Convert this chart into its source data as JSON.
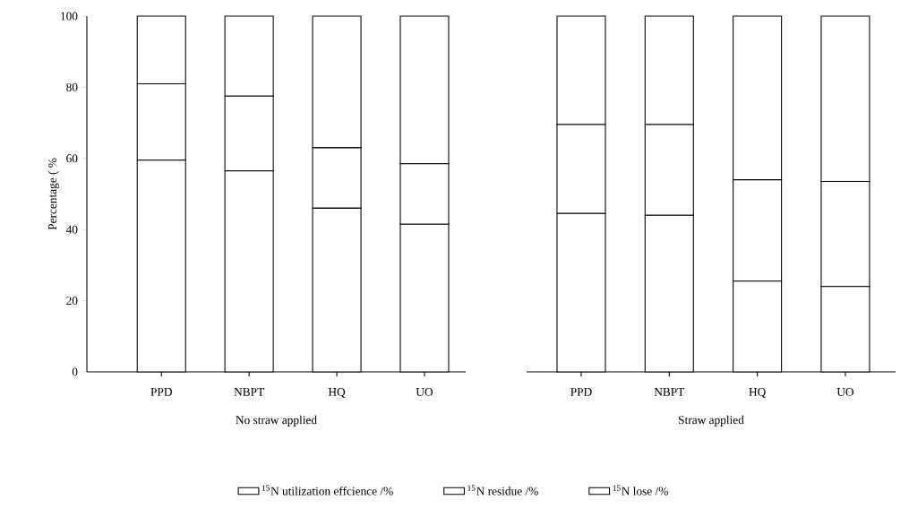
{
  "chart_data": [
    {
      "type": "bar",
      "stacked": true,
      "xlabel": "No straw applied",
      "ylabel": "Percentage ( %",
      "categories": [
        "PPD",
        "NBPT",
        "HQ",
        "UO"
      ],
      "ylim": [
        0,
        100
      ],
      "yticks": [
        0,
        20,
        40,
        60,
        80,
        100
      ],
      "legend": "bottom",
      "series": [
        {
          "name": "$^{15}$N utilization effcience /%",
          "color": "#ffffff",
          "values": [
            59.5,
            56.5,
            46,
            41.5
          ]
        },
        {
          "name": "$^{15}$N residue /%",
          "color": "#ffffff",
          "values": [
            21.5,
            21,
            17,
            17
          ]
        },
        {
          "name": "$^{15}$N lose /%",
          "color": "#ffffff",
          "values": [
            19,
            22.5,
            37,
            41.5
          ]
        }
      ]
    },
    {
      "type": "bar",
      "stacked": true,
      "xlabel": "Straw applied",
      "categories": [
        "PPD",
        "NBPT",
        "HQ",
        "UO"
      ],
      "ylim": [
        0,
        100
      ],
      "tick_labels": "x",
      "series": [
        {
          "color": "#ffffff",
          "values": [
            44.5,
            44,
            25.5,
            24
          ]
        },
        {
          "color": "#ffffff",
          "values": [
            25,
            25.5,
            28.5,
            29.5
          ]
        },
        {
          "color": "#ffffff",
          "values": [
            30.5,
            30.5,
            46,
            46.5
          ]
        }
      ]
    }
  ]
}
